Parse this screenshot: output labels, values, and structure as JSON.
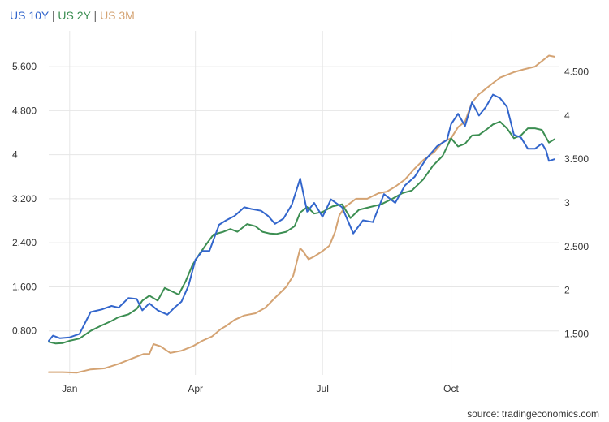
{
  "legend": {
    "separator": " | "
  },
  "source": "source: tradingeconomics.com",
  "chart_data": {
    "type": "line",
    "grid": true,
    "legend_position": "top-left",
    "x_range": [
      0,
      365
    ],
    "x_ticks": [
      {
        "label": "Jan",
        "day": 15
      },
      {
        "label": "Apr",
        "day": 105
      },
      {
        "label": "Jul",
        "day": 196
      },
      {
        "label": "Oct",
        "day": 288
      }
    ],
    "left_axis": {
      "range": [
        0,
        6.25
      ],
      "ticks": [
        {
          "value": 0.8,
          "label": "0.800"
        },
        {
          "value": 1.6,
          "label": "1.600"
        },
        {
          "value": 2.4,
          "label": "2.400"
        },
        {
          "value": 3.2,
          "label": "3.200"
        },
        {
          "value": 4.0,
          "label": "4"
        },
        {
          "value": 4.8,
          "label": "4.800"
        },
        {
          "value": 5.6,
          "label": "5.600"
        }
      ]
    },
    "right_axis": {
      "range": [
        1.03,
        4.97
      ],
      "ticks": [
        {
          "value": 1.5,
          "label": "1.500"
        },
        {
          "value": 2.0,
          "label": "2"
        },
        {
          "value": 2.5,
          "label": "2.500"
        },
        {
          "value": 3.0,
          "label": "3"
        },
        {
          "value": 3.5,
          "label": "3.500"
        },
        {
          "value": 4.0,
          "label": "4"
        },
        {
          "value": 4.5,
          "label": "4.500"
        }
      ]
    },
    "series": [
      {
        "name": "US 10Y",
        "color": "#3366cc",
        "axis": "right",
        "points": [
          [
            0,
            1.42
          ],
          [
            3,
            1.48
          ],
          [
            8,
            1.45
          ],
          [
            15,
            1.46
          ],
          [
            22,
            1.5
          ],
          [
            30,
            1.75
          ],
          [
            38,
            1.78
          ],
          [
            45,
            1.82
          ],
          [
            50,
            1.8
          ],
          [
            57,
            1.91
          ],
          [
            63,
            1.9
          ],
          [
            67,
            1.77
          ],
          [
            72,
            1.85
          ],
          [
            78,
            1.77
          ],
          [
            85,
            1.72
          ],
          [
            90,
            1.8
          ],
          [
            95,
            1.87
          ],
          [
            100,
            2.05
          ],
          [
            105,
            2.35
          ],
          [
            110,
            2.45
          ],
          [
            115,
            2.45
          ],
          [
            122,
            2.75
          ],
          [
            127,
            2.8
          ],
          [
            133,
            2.85
          ],
          [
            140,
            2.95
          ],
          [
            145,
            2.93
          ],
          [
            152,
            2.91
          ],
          [
            157,
            2.85
          ],
          [
            162,
            2.76
          ],
          [
            168,
            2.82
          ],
          [
            174,
            2.98
          ],
          [
            180,
            3.28
          ],
          [
            185,
            2.9
          ],
          [
            190,
            3.0
          ],
          [
            196,
            2.84
          ],
          [
            202,
            3.04
          ],
          [
            210,
            2.95
          ],
          [
            218,
            2.65
          ],
          [
            225,
            2.8
          ],
          [
            232,
            2.78
          ],
          [
            240,
            3.1
          ],
          [
            248,
            3.0
          ],
          [
            255,
            3.2
          ],
          [
            262,
            3.3
          ],
          [
            270,
            3.5
          ],
          [
            278,
            3.65
          ],
          [
            285,
            3.72
          ],
          [
            288,
            3.9
          ],
          [
            293,
            4.02
          ],
          [
            298,
            3.88
          ],
          [
            303,
            4.15
          ],
          [
            308,
            4.0
          ],
          [
            313,
            4.1
          ],
          [
            318,
            4.24
          ],
          [
            323,
            4.2
          ],
          [
            328,
            4.1
          ],
          [
            333,
            3.78
          ],
          [
            338,
            3.75
          ],
          [
            343,
            3.62
          ],
          [
            348,
            3.62
          ],
          [
            353,
            3.68
          ],
          [
            356,
            3.6
          ],
          [
            358,
            3.48
          ],
          [
            362,
            3.5
          ]
        ]
      },
      {
        "name": "US 2Y",
        "color": "#3c8e52",
        "axis": "left",
        "points": [
          [
            0,
            0.6
          ],
          [
            5,
            0.57
          ],
          [
            10,
            0.58
          ],
          [
            15,
            0.62
          ],
          [
            22,
            0.66
          ],
          [
            30,
            0.8
          ],
          [
            38,
            0.9
          ],
          [
            45,
            0.98
          ],
          [
            50,
            1.05
          ],
          [
            57,
            1.1
          ],
          [
            63,
            1.2
          ],
          [
            67,
            1.35
          ],
          [
            72,
            1.44
          ],
          [
            78,
            1.35
          ],
          [
            83,
            1.58
          ],
          [
            88,
            1.52
          ],
          [
            93,
            1.46
          ],
          [
            98,
            1.7
          ],
          [
            103,
            2.0
          ],
          [
            108,
            2.2
          ],
          [
            113,
            2.38
          ],
          [
            118,
            2.55
          ],
          [
            125,
            2.6
          ],
          [
            130,
            2.65
          ],
          [
            135,
            2.6
          ],
          [
            142,
            2.74
          ],
          [
            148,
            2.7
          ],
          [
            153,
            2.6
          ],
          [
            158,
            2.57
          ],
          [
            163,
            2.56
          ],
          [
            170,
            2.6
          ],
          [
            176,
            2.7
          ],
          [
            180,
            2.95
          ],
          [
            185,
            3.05
          ],
          [
            190,
            2.93
          ],
          [
            196,
            2.96
          ],
          [
            203,
            3.06
          ],
          [
            210,
            3.1
          ],
          [
            216,
            2.85
          ],
          [
            222,
            3.0
          ],
          [
            230,
            3.05
          ],
          [
            238,
            3.1
          ],
          [
            246,
            3.2
          ],
          [
            253,
            3.3
          ],
          [
            260,
            3.35
          ],
          [
            268,
            3.55
          ],
          [
            275,
            3.8
          ],
          [
            282,
            3.98
          ],
          [
            288,
            4.3
          ],
          [
            293,
            4.15
          ],
          [
            298,
            4.2
          ],
          [
            303,
            4.35
          ],
          [
            308,
            4.36
          ],
          [
            313,
            4.45
          ],
          [
            318,
            4.55
          ],
          [
            323,
            4.6
          ],
          [
            328,
            4.48
          ],
          [
            333,
            4.3
          ],
          [
            338,
            4.35
          ],
          [
            343,
            4.48
          ],
          [
            348,
            4.48
          ],
          [
            353,
            4.45
          ],
          [
            358,
            4.22
          ],
          [
            362,
            4.28
          ]
        ]
      },
      {
        "name": "US 3M",
        "color": "#d4a373",
        "axis": "left",
        "points": [
          [
            0,
            0.05
          ],
          [
            10,
            0.05
          ],
          [
            20,
            0.04
          ],
          [
            30,
            0.1
          ],
          [
            40,
            0.12
          ],
          [
            50,
            0.2
          ],
          [
            60,
            0.3
          ],
          [
            68,
            0.38
          ],
          [
            72,
            0.38
          ],
          [
            75,
            0.56
          ],
          [
            80,
            0.52
          ],
          [
            87,
            0.4
          ],
          [
            95,
            0.44
          ],
          [
            103,
            0.52
          ],
          [
            110,
            0.62
          ],
          [
            117,
            0.7
          ],
          [
            123,
            0.83
          ],
          [
            127,
            0.89
          ],
          [
            133,
            1.0
          ],
          [
            140,
            1.08
          ],
          [
            148,
            1.12
          ],
          [
            155,
            1.22
          ],
          [
            162,
            1.4
          ],
          [
            170,
            1.6
          ],
          [
            175,
            1.8
          ],
          [
            178,
            2.1
          ],
          [
            180,
            2.3
          ],
          [
            182,
            2.25
          ],
          [
            186,
            2.1
          ],
          [
            190,
            2.15
          ],
          [
            196,
            2.25
          ],
          [
            201,
            2.35
          ],
          [
            205,
            2.6
          ],
          [
            208,
            2.9
          ],
          [
            212,
            3.05
          ],
          [
            220,
            3.2
          ],
          [
            228,
            3.2
          ],
          [
            236,
            3.3
          ],
          [
            242,
            3.33
          ],
          [
            248,
            3.42
          ],
          [
            255,
            3.55
          ],
          [
            262,
            3.75
          ],
          [
            268,
            3.9
          ],
          [
            276,
            4.05
          ],
          [
            282,
            4.23
          ],
          [
            288,
            4.3
          ],
          [
            293,
            4.5
          ],
          [
            298,
            4.6
          ],
          [
            303,
            4.95
          ],
          [
            308,
            5.1
          ],
          [
            313,
            5.2
          ],
          [
            318,
            5.3
          ],
          [
            323,
            5.4
          ],
          [
            328,
            5.45
          ],
          [
            333,
            5.5
          ],
          [
            340,
            5.55
          ],
          [
            348,
            5.6
          ],
          [
            353,
            5.7
          ],
          [
            358,
            5.8
          ],
          [
            362,
            5.78
          ]
        ]
      }
    ]
  }
}
